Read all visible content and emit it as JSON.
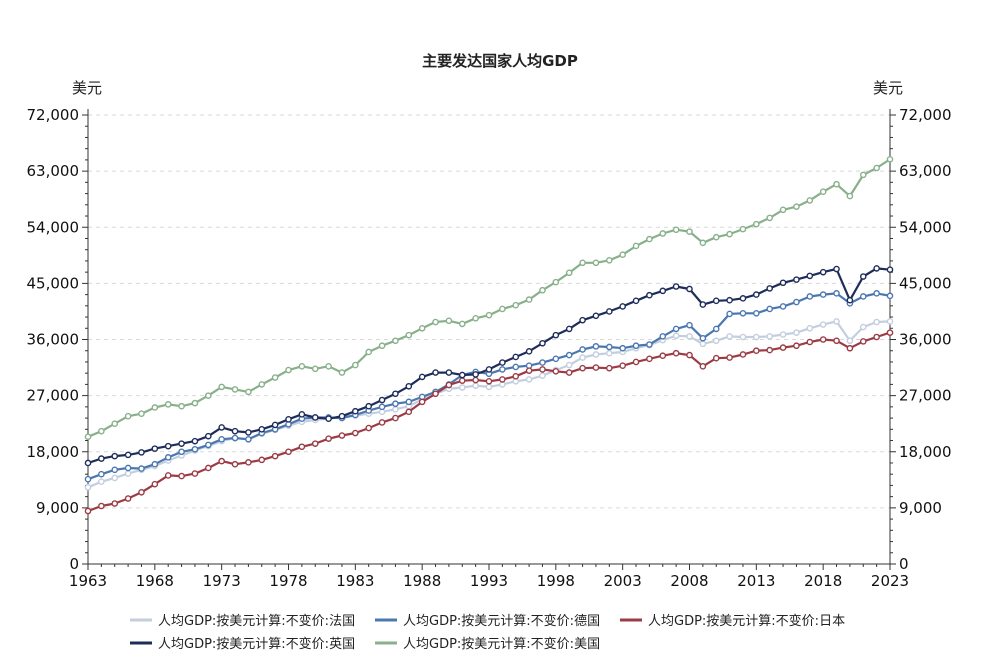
{
  "chart_data": {
    "type": "line",
    "title": "主要发达国家人均GDP",
    "y_unit_left": "美元",
    "y_unit_right": "美元",
    "ylim": [
      0,
      72000
    ],
    "yticks": [
      "0",
      "9,000",
      "18,000",
      "27,000",
      "36,000",
      "45,000",
      "54,000",
      "63,000",
      "72,000"
    ],
    "ytick_values": [
      0,
      9000,
      18000,
      27000,
      36000,
      45000,
      54000,
      63000,
      72000
    ],
    "xlim": [
      1963,
      2023
    ],
    "xticks": [
      "1963",
      "1968",
      "1973",
      "1978",
      "1983",
      "1988",
      "1993",
      "1998",
      "2003",
      "2008",
      "2013",
      "2018",
      "2023"
    ],
    "xtick_values": [
      1963,
      1968,
      1973,
      1978,
      1983,
      1988,
      1993,
      1998,
      2003,
      2008,
      2013,
      2018,
      2023
    ],
    "grid": true,
    "legend_position": "bottom",
    "series": [
      {
        "name": "人均GDP:按美元计算:不变价:法国",
        "color": "#c3cedf",
        "x": [
          1963,
          1964,
          1965,
          1966,
          1967,
          1968,
          1969,
          1970,
          1971,
          1972,
          1973,
          1974,
          1975,
          1976,
          1977,
          1978,
          1979,
          1980,
          1981,
          1982,
          1983,
          1984,
          1985,
          1986,
          1987,
          1988,
          1989,
          1990,
          1991,
          1992,
          1993,
          1994,
          1995,
          1996,
          1997,
          1998,
          1999,
          2000,
          2001,
          2002,
          2003,
          2004,
          2005,
          2006,
          2007,
          2008,
          2009,
          2010,
          2011,
          2012,
          2013,
          2014,
          2015,
          2016,
          2017,
          2018,
          2019,
          2020,
          2021,
          2022,
          2023
        ],
        "values": [
          12300,
          13200,
          13800,
          14500,
          15100,
          15700,
          16600,
          17400,
          18200,
          18900,
          19700,
          20200,
          20000,
          20900,
          21500,
          22200,
          22800,
          23100,
          23300,
          23600,
          23800,
          24100,
          24400,
          24800,
          25300,
          26400,
          27300,
          28100,
          28300,
          28600,
          28400,
          28800,
          29300,
          29600,
          30200,
          31100,
          31900,
          33100,
          33600,
          33800,
          34000,
          34600,
          35100,
          35900,
          36600,
          36500,
          35300,
          35800,
          36500,
          36400,
          36400,
          36500,
          36800,
          37100,
          37800,
          38400,
          38900,
          35800,
          38000,
          38800,
          38900
        ]
      },
      {
        "name": "人均GDP:按美元计算:不变价:德国",
        "color": "#4b77b1",
        "x": [
          1963,
          1964,
          1965,
          1966,
          1967,
          1968,
          1969,
          1970,
          1971,
          1972,
          1973,
          1974,
          1975,
          1976,
          1977,
          1978,
          1979,
          1980,
          1981,
          1982,
          1983,
          1984,
          1985,
          1986,
          1987,
          1988,
          1989,
          1990,
          1991,
          1992,
          1993,
          1994,
          1995,
          1996,
          1997,
          1998,
          1999,
          2000,
          2001,
          2002,
          2003,
          2004,
          2005,
          2006,
          2007,
          2008,
          2009,
          2010,
          2011,
          2012,
          2013,
          2014,
          2015,
          2016,
          2017,
          2018,
          2019,
          2020,
          2021,
          2022,
          2023
        ],
        "values": [
          13600,
          14400,
          15100,
          15400,
          15300,
          16000,
          17100,
          18000,
          18400,
          19100,
          20000,
          20200,
          20000,
          21000,
          21600,
          22400,
          23300,
          23500,
          23500,
          23400,
          23900,
          24600,
          25200,
          25700,
          26000,
          26800,
          27600,
          28800,
          30300,
          30800,
          30500,
          31200,
          31600,
          31800,
          32300,
          32900,
          33500,
          34400,
          34900,
          34800,
          34600,
          35000,
          35200,
          36500,
          37700,
          38300,
          36200,
          37700,
          40100,
          40200,
          40200,
          40900,
          41300,
          42000,
          42900,
          43200,
          43400,
          41800,
          42900,
          43400,
          43000
        ]
      },
      {
        "name": "人均GDP:按美元计算:不变价:日本",
        "color": "#9c3b45",
        "x": [
          1963,
          1964,
          1965,
          1966,
          1967,
          1968,
          1969,
          1970,
          1971,
          1972,
          1973,
          1974,
          1975,
          1976,
          1977,
          1978,
          1979,
          1980,
          1981,
          1982,
          1983,
          1984,
          1985,
          1986,
          1987,
          1988,
          1989,
          1990,
          1991,
          1992,
          1993,
          1994,
          1995,
          1996,
          1997,
          1998,
          1999,
          2000,
          2001,
          2002,
          2003,
          2004,
          2005,
          2006,
          2007,
          2008,
          2009,
          2010,
          2011,
          2012,
          2013,
          2014,
          2015,
          2016,
          2017,
          2018,
          2019,
          2020,
          2021,
          2022,
          2023
        ],
        "values": [
          8500,
          9300,
          9700,
          10500,
          11500,
          12800,
          14200,
          14100,
          14500,
          15400,
          16500,
          16000,
          16300,
          16700,
          17300,
          18000,
          18800,
          19300,
          20100,
          20600,
          21000,
          21800,
          22700,
          23400,
          24400,
          26000,
          27300,
          28700,
          29400,
          29500,
          29300,
          29600,
          30100,
          31000,
          31200,
          30900,
          30700,
          31400,
          31500,
          31400,
          31800,
          32400,
          32900,
          33400,
          33800,
          33500,
          31700,
          33000,
          33100,
          33600,
          34200,
          34300,
          34700,
          35000,
          35600,
          36000,
          35800,
          34600,
          35700,
          36400,
          37100
        ]
      },
      {
        "name": "人均GDP:按美元计算:不变价:英国",
        "color": "#1e2c5a",
        "x": [
          1963,
          1964,
          1965,
          1966,
          1967,
          1968,
          1969,
          1970,
          1971,
          1972,
          1973,
          1974,
          1975,
          1976,
          1977,
          1978,
          1979,
          1980,
          1981,
          1982,
          1983,
          1984,
          1985,
          1986,
          1987,
          1988,
          1989,
          1990,
          1991,
          1992,
          1993,
          1994,
          1995,
          1996,
          1997,
          1998,
          1999,
          2000,
          2001,
          2002,
          2003,
          2004,
          2005,
          2006,
          2007,
          2008,
          2009,
          2010,
          2011,
          2012,
          2013,
          2014,
          2015,
          2016,
          2017,
          2018,
          2019,
          2020,
          2021,
          2022,
          2023
        ],
        "values": [
          16200,
          16900,
          17300,
          17500,
          17900,
          18500,
          18900,
          19300,
          19700,
          20500,
          21900,
          21300,
          21100,
          21600,
          22300,
          23200,
          24000,
          23500,
          23300,
          23700,
          24500,
          25300,
          26300,
          27300,
          28500,
          30000,
          30700,
          30700,
          30300,
          30400,
          31200,
          32300,
          33200,
          34100,
          35400,
          36700,
          37700,
          39100,
          39800,
          40500,
          41300,
          42200,
          43100,
          43800,
          44500,
          44100,
          41600,
          42200,
          42300,
          42600,
          43200,
          44200,
          45100,
          45600,
          46200,
          46800,
          47300,
          42300,
          46100,
          47400,
          47200
        ]
      },
      {
        "name": "人均GDP:按美元计算:不变价:美国",
        "color": "#88b08b",
        "x": [
          1963,
          1964,
          1965,
          1966,
          1967,
          1968,
          1969,
          1970,
          1971,
          1972,
          1973,
          1974,
          1975,
          1976,
          1977,
          1978,
          1979,
          1980,
          1981,
          1982,
          1983,
          1984,
          1985,
          1986,
          1987,
          1988,
          1989,
          1990,
          1991,
          1992,
          1993,
          1994,
          1995,
          1996,
          1997,
          1998,
          1999,
          2000,
          2001,
          2002,
          2003,
          2004,
          2005,
          2006,
          2007,
          2008,
          2009,
          2010,
          2011,
          2012,
          2013,
          2014,
          2015,
          2016,
          2017,
          2018,
          2019,
          2020,
          2021,
          2022,
          2023
        ],
        "values": [
          20400,
          21300,
          22500,
          23700,
          24100,
          25100,
          25600,
          25300,
          25800,
          27000,
          28400,
          28000,
          27600,
          28800,
          29900,
          31100,
          31700,
          31300,
          31700,
          30700,
          31900,
          34000,
          35000,
          35800,
          36700,
          37800,
          38800,
          39000,
          38500,
          39400,
          39900,
          40900,
          41500,
          42400,
          43900,
          45200,
          46700,
          48300,
          48300,
          48700,
          49600,
          51000,
          52100,
          53000,
          53600,
          53300,
          51500,
          52400,
          52900,
          53700,
          54500,
          55500,
          56800,
          57300,
          58300,
          59700,
          60900,
          59000,
          62400,
          63500,
          64900
        ]
      }
    ]
  }
}
